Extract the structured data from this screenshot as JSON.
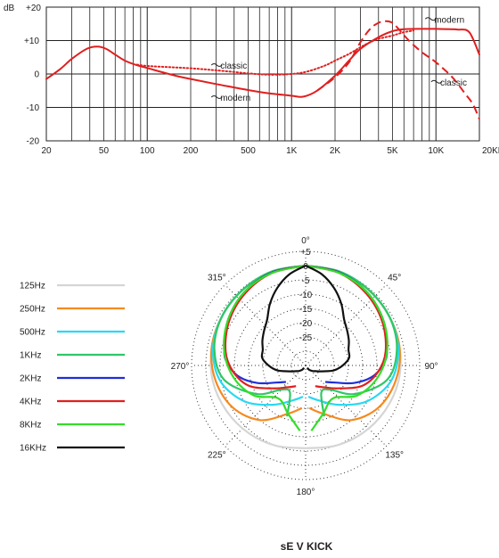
{
  "chart_data": [
    {
      "type": "line",
      "title": "",
      "xlabel": "",
      "ylabel": "dB",
      "x_scale": "log",
      "xlim": [
        20,
        20000
      ],
      "ylim": [
        -20,
        20
      ],
      "grid": true,
      "x_tick_labels": [
        "20",
        "50",
        "100",
        "200",
        "500",
        "1K",
        "2K",
        "5K",
        "10K",
        "20KHz"
      ],
      "x_tick_values": [
        20,
        50,
        100,
        200,
        500,
        1000,
        2000,
        5000,
        10000,
        20000
      ],
      "y_tick_labels": [
        "+20",
        "+10",
        "0",
        "-10",
        "-20"
      ],
      "y_tick_values": [
        20,
        10,
        0,
        -10,
        -20
      ],
      "series": [
        {
          "name": "modern",
          "style": "solid",
          "color": "#e01f1f",
          "x": [
            20,
            25,
            30,
            38,
            45,
            52,
            60,
            70,
            85,
            100,
            150,
            200,
            300,
            500,
            700,
            1000,
            1200,
            1500,
            2000,
            2500,
            3000,
            4000,
            5000,
            6000,
            8000,
            10000,
            14000,
            17000,
            20000
          ],
          "y": [
            -1.5,
            1.5,
            4.5,
            7.5,
            8.2,
            7.5,
            5.8,
            4,
            2.6,
            1.8,
            -0.3,
            -1.5,
            -3,
            -4.8,
            -5.8,
            -6.5,
            -6.8,
            -5,
            -0.5,
            4,
            7.5,
            11,
            12.8,
            13.4,
            13.5,
            13.5,
            13.3,
            12.5,
            5.8
          ]
        },
        {
          "name": "classic",
          "style": "dotted",
          "color": "#e01f1f",
          "x": [
            85,
            100,
            150,
            200,
            300,
            500,
            700,
            1000,
            1300,
            1700,
            2000,
            2500,
            3000,
            3500,
            4000,
            5000,
            6000,
            7000
          ],
          "y": [
            2.8,
            2.4,
            2,
            1.7,
            1.1,
            0.2,
            -0.2,
            0,
            0.8,
            2.5,
            4,
            6,
            8,
            9.5,
            10.5,
            11.5,
            12.5,
            13
          ]
        },
        {
          "name": "classic",
          "style": "dashed",
          "color": "#e01f1f",
          "x": [
            1500,
            2000,
            2500,
            3000,
            3500,
            4000,
            4500,
            5000,
            5500,
            6500,
            8000,
            10000,
            13000,
            16000,
            18000,
            20000
          ],
          "y": [
            -5,
            -1,
            3.5,
            9.5,
            13.5,
            15.3,
            15.8,
            15.3,
            13.5,
            10,
            6.5,
            3.5,
            -1,
            -6,
            -9,
            -13.5
          ]
        }
      ],
      "annotations": [
        {
          "text": "modern",
          "x": 10000,
          "y": 16.2
        },
        {
          "text": "classic",
          "x": 330,
          "y": 2.4
        },
        {
          "text": "modern",
          "x": 330,
          "y": -7.2
        },
        {
          "text": "classic",
          "x": 11000,
          "y": -2.6
        }
      ]
    },
    {
      "type": "polar",
      "title": "sE V KICK",
      "angle_labels": [
        {
          "angle": 0,
          "text": "0°"
        },
        {
          "angle": 45,
          "text": "45°"
        },
        {
          "angle": 90,
          "text": "90°"
        },
        {
          "angle": 135,
          "text": "135°"
        },
        {
          "angle": 180,
          "text": "180°"
        },
        {
          "angle": 225,
          "text": "225°"
        },
        {
          "angle": 270,
          "text": "270°"
        },
        {
          "angle": 315,
          "text": "315°"
        }
      ],
      "r_tick_labels": [
        "+5",
        "0",
        "-5",
        "-10",
        "-15",
        "-20",
        "-25"
      ],
      "r_tick_values": [
        5,
        0,
        -5,
        -10,
        -15,
        -20,
        -25
      ],
      "rlim": [
        -35,
        5
      ],
      "grid": true,
      "legend_position": "left",
      "series": [
        {
          "name": "125Hz",
          "color": "#d5d5d5",
          "angles": [
            0,
            20,
            40,
            60,
            80,
            100,
            120,
            140,
            160,
            180
          ],
          "values": [
            0,
            0,
            -0.5,
            -1,
            -1.5,
            -2,
            -3,
            -4,
            -5,
            -6
          ]
        },
        {
          "name": "250Hz",
          "color": "#f58a1f",
          "angles": [
            0,
            20,
            40,
            60,
            80,
            100,
            120,
            140,
            160,
            175
          ],
          "values": [
            0,
            0,
            -0.5,
            -1,
            -1.5,
            -3,
            -5.5,
            -10,
            -17,
            -20
          ]
        },
        {
          "name": "500Hz",
          "color": "#29d8f2",
          "angles": [
            0,
            20,
            40,
            60,
            80,
            100,
            120,
            140,
            160,
            175
          ],
          "values": [
            0,
            0,
            -0.5,
            -1,
            -2,
            -4.5,
            -10,
            -17,
            -22,
            -24
          ]
        },
        {
          "name": "1KHz",
          "color": "#2ec866",
          "angles": [
            0,
            20,
            40,
            60,
            80,
            100,
            120,
            135,
            150,
            160
          ],
          "values": [
            0,
            0,
            -0.5,
            -1,
            -2.5,
            -6,
            -15,
            -23,
            -24,
            -16
          ]
        },
        {
          "name": "2KHz",
          "color": "#1f2fd8",
          "angles": [
            0,
            20,
            40,
            60,
            80,
            90,
            100,
            110,
            120,
            130
          ],
          "values": [
            0,
            -0.3,
            -1.5,
            -3.5,
            -6,
            -8,
            -11.5,
            -17,
            -23,
            -26
          ]
        },
        {
          "name": "4KHz",
          "color": "#e01f1f",
          "angles": [
            0,
            20,
            40,
            60,
            80,
            95,
            110,
            125,
            140,
            155
          ],
          "values": [
            0,
            -0.5,
            -2,
            -4,
            -6.5,
            -9.5,
            -14,
            -21,
            -25,
            -27
          ]
        },
        {
          "name": "8KHz",
          "color": "#35dd2a",
          "angles": [
            0,
            20,
            40,
            60,
            80,
            100,
            120,
            140,
            160,
            175
          ],
          "values": [
            0,
            -0.5,
            -1.5,
            -3.5,
            -6,
            -9.5,
            -14,
            -20,
            -17,
            -12
          ]
        },
        {
          "name": "16KHz",
          "color": "#111111",
          "angles": [
            0,
            10,
            20,
            30,
            40,
            50,
            60,
            70,
            80,
            90,
            100,
            110,
            120,
            130,
            140,
            150
          ],
          "values": [
            0,
            -2.5,
            -6,
            -10,
            -14,
            -16,
            -17.5,
            -19,
            -19.5,
            -22,
            -25,
            -29,
            -31,
            -32,
            -33,
            -34
          ]
        }
      ]
    }
  ]
}
